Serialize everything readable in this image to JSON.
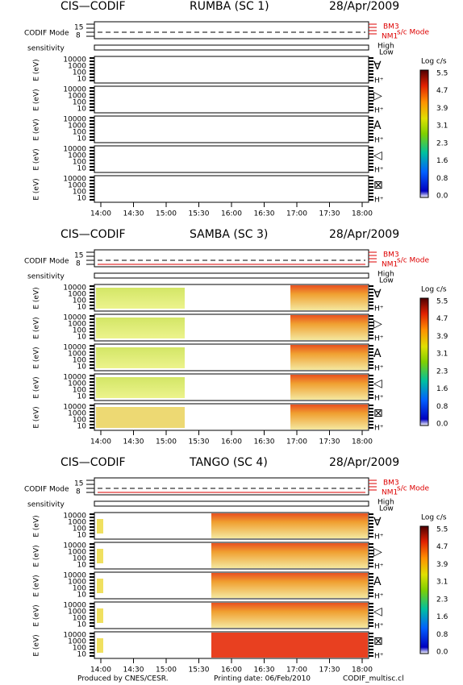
{
  "blocks": [
    {
      "instrument": "CIS—CODIF",
      "spacecraft": "RUMBA (SC 1)",
      "date": "28/Apr/2009"
    },
    {
      "instrument": "CIS—CODIF",
      "spacecraft": "SAMBA (SC 3)",
      "date": "28/Apr/2009"
    },
    {
      "instrument": "CIS—CODIF",
      "spacecraft": "TANGO (SC 4)",
      "date": "28/Apr/2009"
    }
  ],
  "mode": {
    "label": "CODIF Mode",
    "ticks": [
      "15",
      "8"
    ],
    "high_mode": "BM3",
    "low_mode": "NM1",
    "title": "s/c Mode"
  },
  "sensitivity": {
    "label": "sensitivity",
    "high": "High",
    "low": "Low"
  },
  "panel": {
    "ylabel": "E (eV)",
    "yticks": [
      "10000",
      "1000",
      "100",
      "10"
    ],
    "species": "H⁺",
    "symbols": [
      "∀",
      "▷",
      "A",
      "◁",
      "⊠"
    ]
  },
  "xticks": [
    "14:00",
    "14:30",
    "15:00",
    "15:30",
    "16:00",
    "16:30",
    "17:00",
    "17:30",
    "18:00"
  ],
  "colorbar": {
    "title": "Log c/s",
    "ticks": [
      "5.5",
      "4.7",
      "3.9",
      "3.1",
      "2.3",
      "1.6",
      "0.8",
      "0.0"
    ]
  },
  "footer": {
    "produced": "Produced by CNES/CESR.",
    "printing": "Printing date: 06/Feb/2010",
    "file": "CODIF_multisc.cl"
  }
}
